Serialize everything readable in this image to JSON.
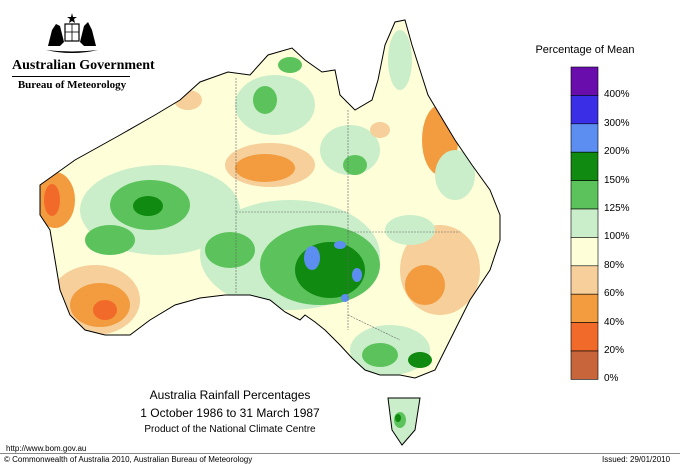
{
  "header": {
    "government": "Australian Government",
    "bureau": "Bureau of Meteorology"
  },
  "legend": {
    "title": "Percentage of Mean",
    "items": [
      {
        "label": "400%",
        "color": "#6a0dad"
      },
      {
        "label": "300%",
        "color": "#3a2fe6"
      },
      {
        "label": "200%",
        "color": "#5b8ef0"
      },
      {
        "label": "150%",
        "color": "#118a11"
      },
      {
        "label": "125%",
        "color": "#5cc35c"
      },
      {
        "label": "100%",
        "color": "#c9eec9"
      },
      {
        "label": "80%",
        "color": "#fefed8"
      },
      {
        "label": "60%",
        "color": "#f6cf9a"
      },
      {
        "label": "40%",
        "color": "#f29b3f"
      },
      {
        "label": "20%",
        "color": "#f26a2a"
      },
      {
        "label": "0%",
        "color": "#c9653a"
      }
    ]
  },
  "map": {
    "title": "Australia Rainfall Percentages",
    "period": "1 October 1986 to 31 March 1987",
    "product": "Product of the National Climate Centre"
  },
  "footer": {
    "url": "http://www.bom.gov.au",
    "copyright": "© Commonwealth of Australia 2010, Australian Bureau of Meteorology",
    "issued": "Issued: 29/01/2010"
  }
}
